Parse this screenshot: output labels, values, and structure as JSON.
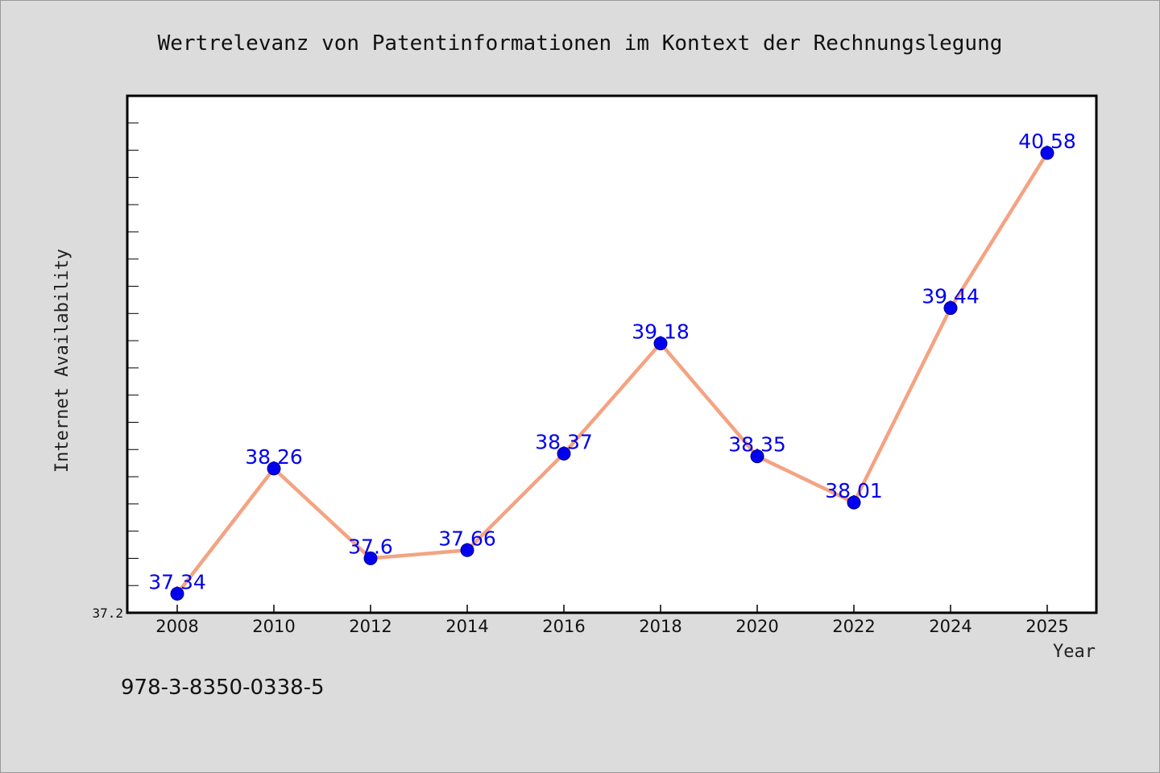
{
  "chart_data": {
    "type": "line",
    "title": "Wertrelevanz von Patentinformationen im Kontext der Rechnungslegung",
    "xlabel": "Year",
    "ylabel": "Internet Availability",
    "categories": [
      "2008",
      "2010",
      "2012",
      "2014",
      "2016",
      "2018",
      "2020",
      "2022",
      "2024",
      "2025"
    ],
    "series": [
      {
        "values": [
          37.34,
          38.26,
          37.6,
          37.66,
          38.37,
          39.18,
          38.35,
          38.01,
          39.44,
          40.58
        ],
        "labels": [
          "37.34",
          "38.26",
          "37.6",
          "37.66",
          "38.37",
          "39.18",
          "38.35",
          "38.01",
          "39.44",
          "40.58"
        ]
      }
    ],
    "ylim": [
      37.2,
      41.0
    ],
    "y_tick_label": "37.2",
    "grid": false,
    "legend": "none",
    "line_color": "#f4a382",
    "marker_color": "#0000ee",
    "label_color": "#0000ee"
  },
  "footer": {
    "isbn": "978-3-8350-0338-5"
  }
}
